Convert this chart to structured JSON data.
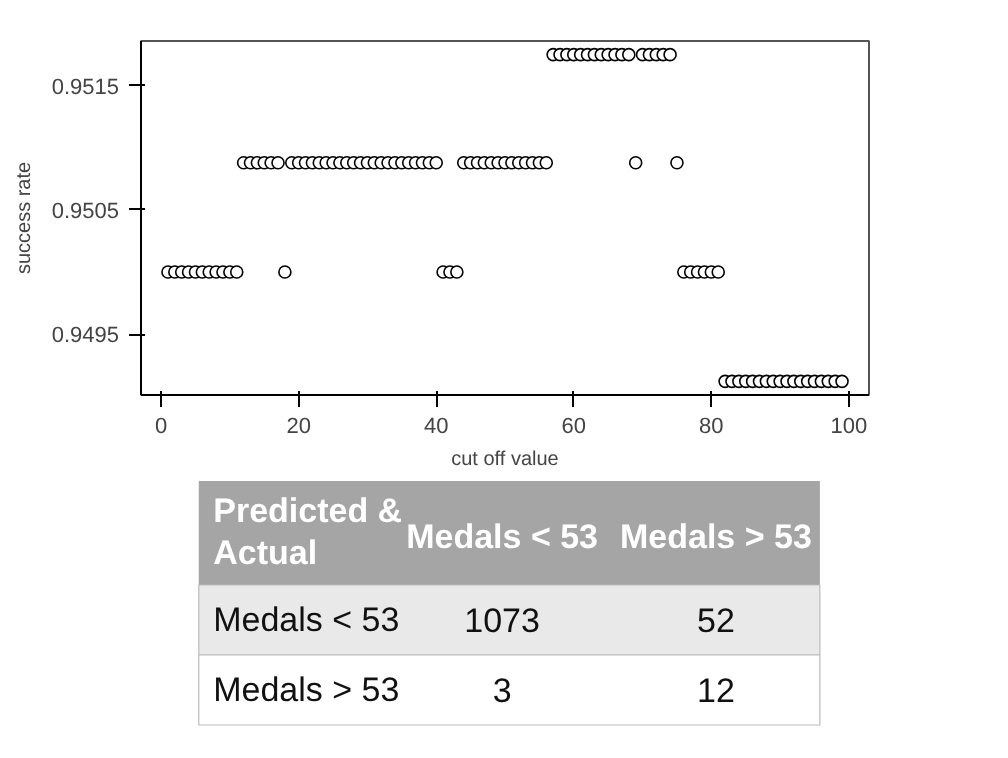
{
  "chart_data": [
    {
      "type": "scatter",
      "xlabel": "cut off value",
      "ylabel": "success rate",
      "marker": "circle",
      "grid": false,
      "xlim": [
        -2.92,
        102.92
      ],
      "ylim": [
        0.94901,
        0.95186
      ],
      "xticks": [
        0,
        20,
        40,
        60,
        80,
        100
      ],
      "yticks": [
        0.9495,
        0.9505,
        0.9515
      ],
      "series": [
        {
          "color": "#000000",
          "x": [
            1,
            2,
            3,
            4,
            5,
            6,
            7,
            8,
            9,
            10,
            11,
            12,
            13,
            14,
            15,
            16,
            17,
            18,
            19,
            20,
            21,
            22,
            23,
            24,
            25,
            26,
            27,
            28,
            29,
            30,
            31,
            32,
            33,
            34,
            35,
            36,
            37,
            38,
            39,
            40,
            41,
            42,
            43,
            44,
            45,
            46,
            47,
            48,
            49,
            50,
            51,
            52,
            53,
            54,
            55,
            56,
            57,
            58,
            59,
            60,
            61,
            62,
            63,
            64,
            65,
            66,
            67,
            68,
            69,
            70,
            71,
            72,
            73,
            74,
            75,
            76,
            77,
            78,
            79,
            80,
            81,
            82,
            83,
            84,
            85,
            86,
            87,
            88,
            89,
            90,
            91,
            92,
            93,
            94,
            95,
            96,
            97,
            98,
            99
          ],
          "values": [
            0.95,
            0.95,
            0.95,
            0.95,
            0.95,
            0.95,
            0.95,
            0.95,
            0.95,
            0.95,
            0.95,
            0.95088,
            0.95088,
            0.95088,
            0.95088,
            0.95088,
            0.95088,
            0.95,
            0.95088,
            0.95088,
            0.95088,
            0.95088,
            0.95088,
            0.95088,
            0.95088,
            0.95088,
            0.95088,
            0.95088,
            0.95088,
            0.95088,
            0.95088,
            0.95088,
            0.95088,
            0.95088,
            0.95088,
            0.95088,
            0.95088,
            0.95088,
            0.95088,
            0.95088,
            0.95,
            0.95,
            0.95,
            0.95088,
            0.95088,
            0.95088,
            0.95088,
            0.95088,
            0.95088,
            0.95088,
            0.95088,
            0.95088,
            0.95088,
            0.95088,
            0.95088,
            0.95088,
            0.95175,
            0.95175,
            0.95175,
            0.95175,
            0.95175,
            0.95175,
            0.95175,
            0.95175,
            0.95175,
            0.95175,
            0.95175,
            0.95175,
            0.95088,
            0.95175,
            0.95175,
            0.95175,
            0.95175,
            0.95175,
            0.95088,
            0.95,
            0.95,
            0.95,
            0.95,
            0.95,
            0.95,
            0.94912,
            0.94912,
            0.94912,
            0.94912,
            0.94912,
            0.94912,
            0.94912,
            0.94912,
            0.94912,
            0.94912,
            0.94912,
            0.94912,
            0.94912,
            0.94912,
            0.94912,
            0.94912,
            0.94912,
            0.94912
          ]
        }
      ]
    },
    {
      "type": "heatmap",
      "title": "Predicted & Actual",
      "categories": [
        "Medals < 53",
        "Medals > 53"
      ],
      "y_categories": [
        "Medals < 53",
        "Medals > 53"
      ],
      "cells": [
        [
          1073,
          52
        ],
        [
          3,
          12
        ]
      ],
      "data_labels": true
    }
  ]
}
